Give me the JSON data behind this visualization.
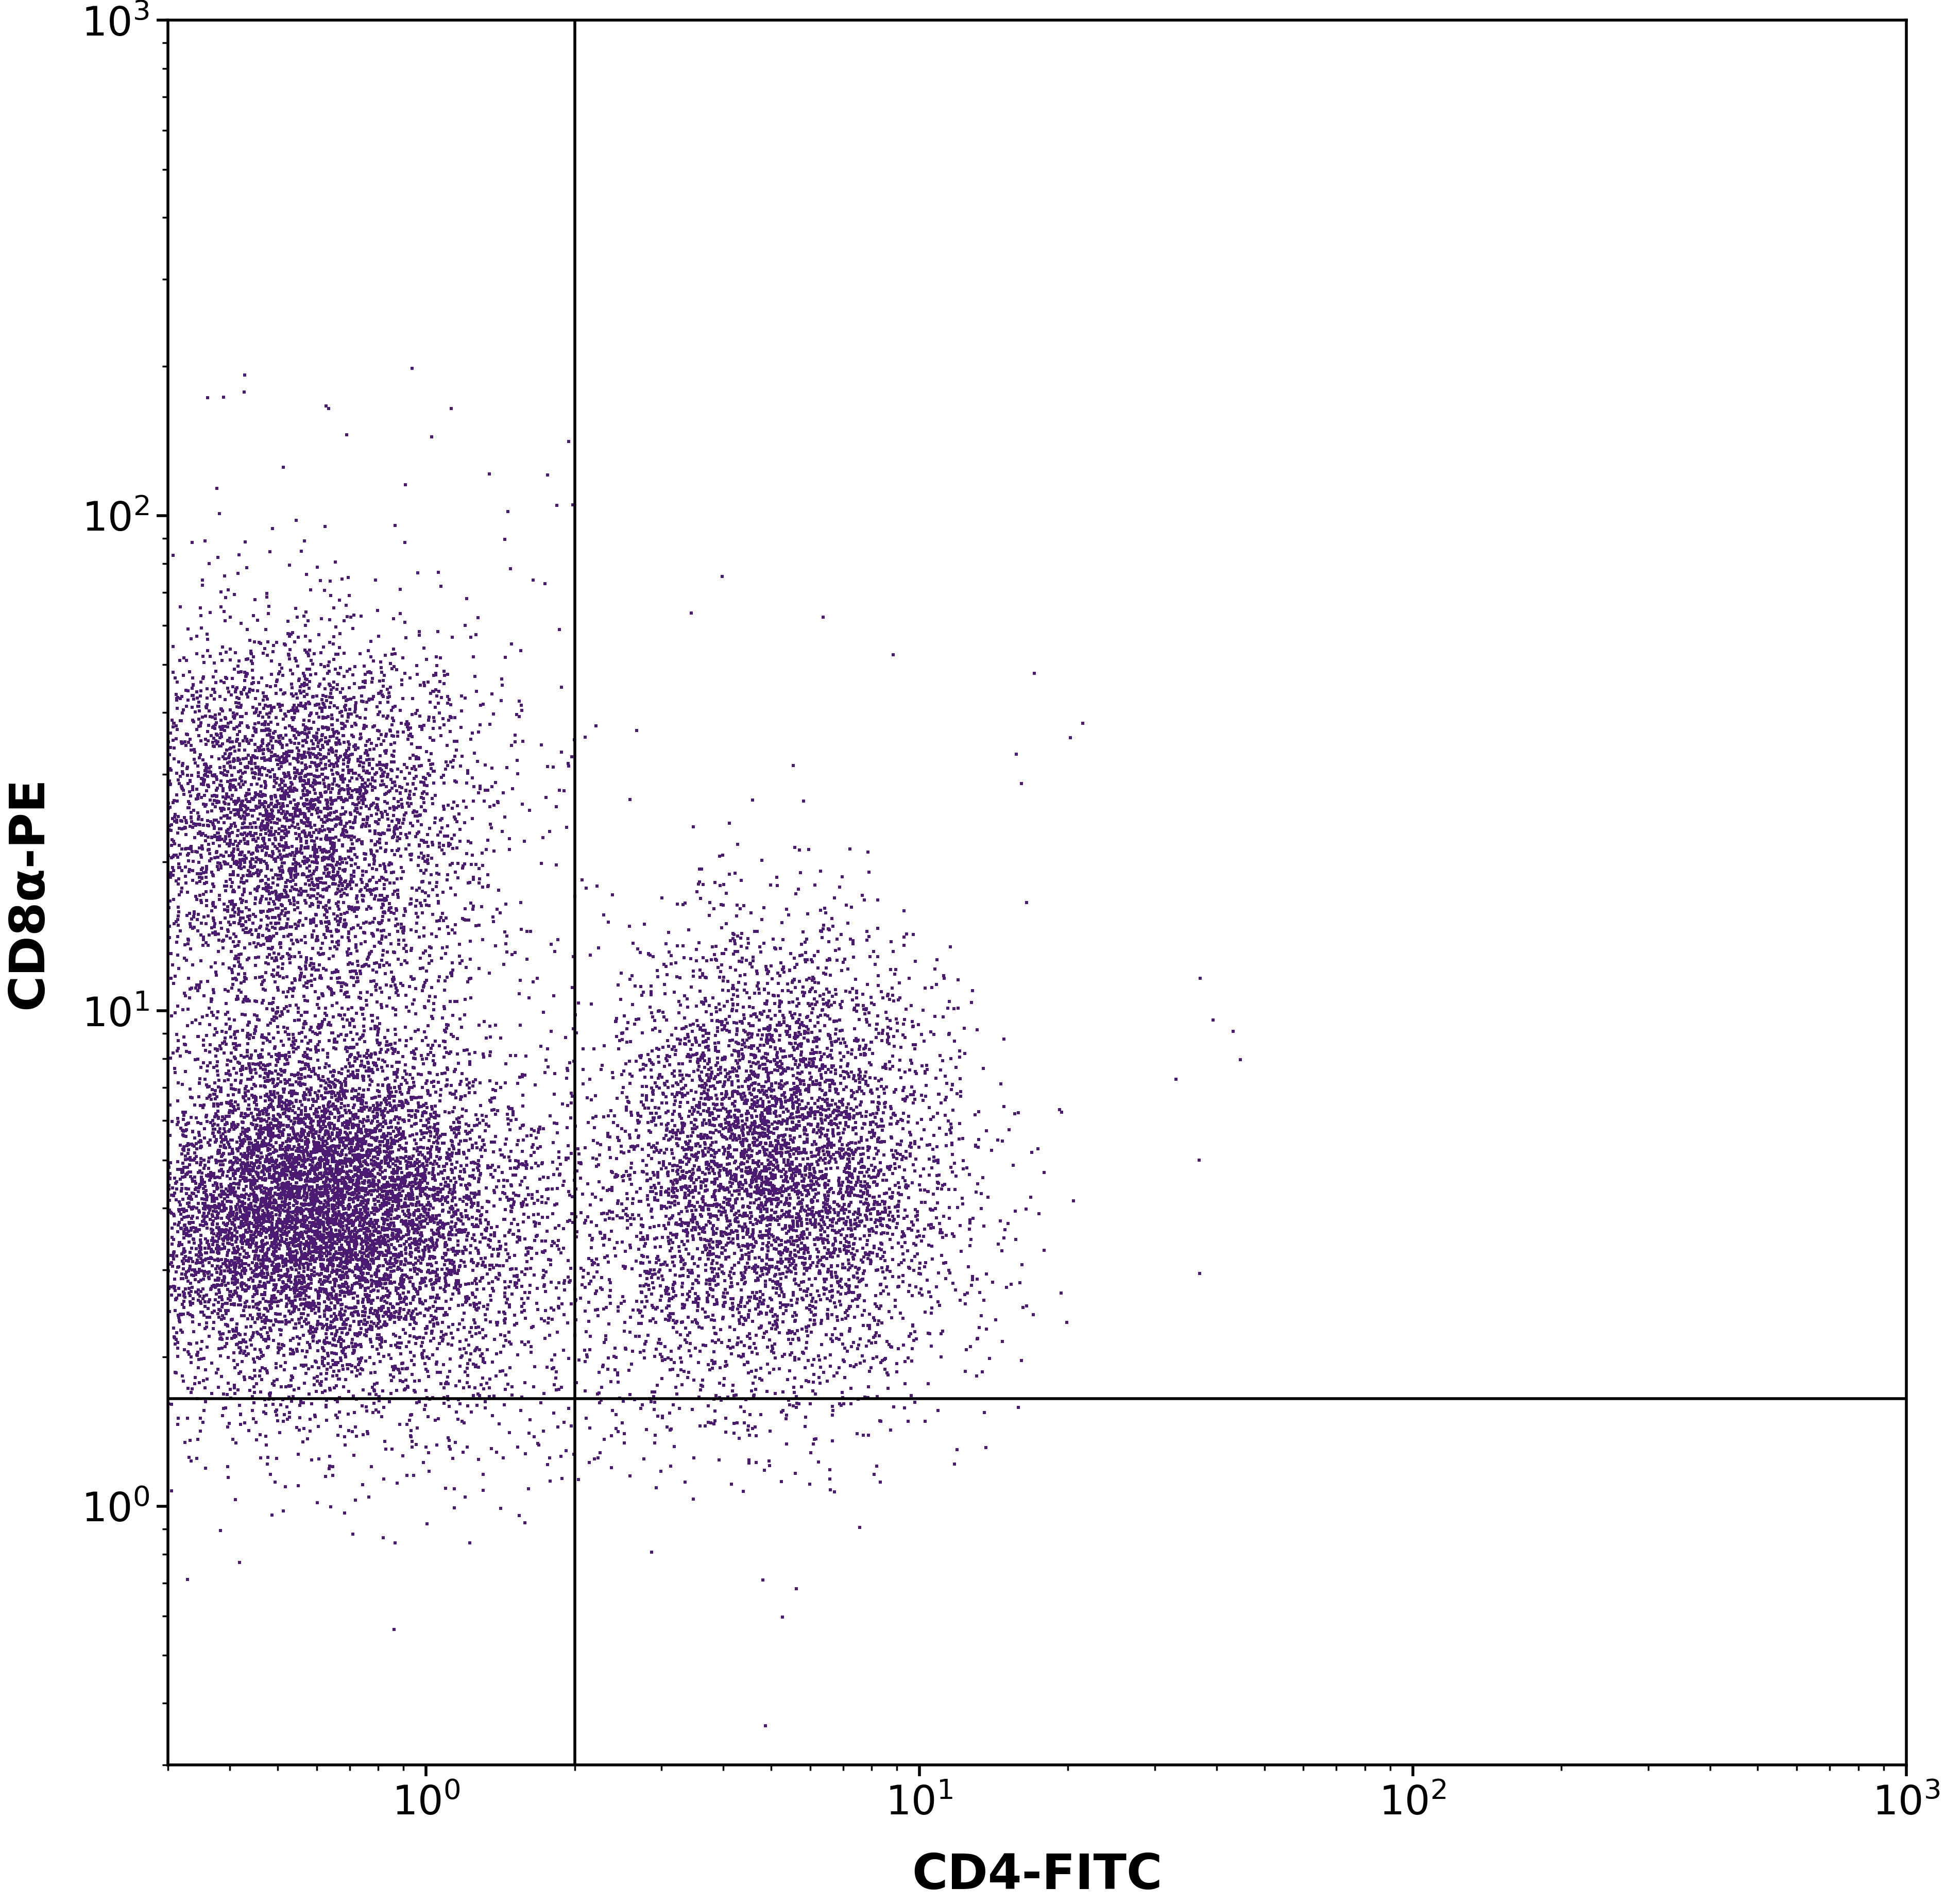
{
  "xlabel": "CD4-FITC",
  "ylabel": "CD8α-PE",
  "dot_color": "#4b1a72",
  "background_color": "#ffffff",
  "xlim_log": [
    0.3,
    1000
  ],
  "ylim_log": [
    0.3,
    1000
  ],
  "quadrant_x": 2.0,
  "quadrant_y": 1.65,
  "xlabel_fontsize": 68,
  "ylabel_fontsize": 68,
  "tick_fontsize": 56,
  "dot_size": 22,
  "dot_alpha": 1.0,
  "seed": 42
}
